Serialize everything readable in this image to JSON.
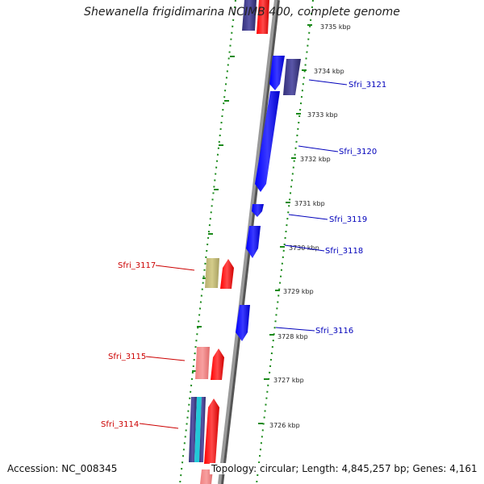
{
  "title": "Shewanella frigidimarina NCIMB 400, complete genome",
  "accession": "Accession: NC_008345",
  "topology": "Topology: circular; Length: 4,845,257 bp; Genes: 4,161",
  "ticks": [
    "3735 kbp",
    "3734 kbp",
    "3733 kbp",
    "3732 kbp",
    "3731 kbp",
    "3730 kbp",
    "3729 kbp",
    "3728 kbp",
    "3727 kbp",
    "3726 kbp"
  ],
  "gene_labels": {
    "sfri_3121": "Sfri_3121",
    "sfri_3120": "Sfri_3120",
    "sfri_3119": "Sfri_3119",
    "sfri_3118": "Sfri_3118",
    "sfri_3117": "Sfri_3117",
    "sfri_3116": "Sfri_3116",
    "sfri_3115": "Sfri_3115",
    "sfri_3114": "Sfri_3114"
  },
  "colors": {
    "forward_label": "#0000bb",
    "reverse_label": "#cc0000",
    "forward_gene": "#0000ff",
    "reverse_gene": "#ff0000",
    "backbone": "#888888",
    "tick_marks": "#1a8a1a"
  }
}
